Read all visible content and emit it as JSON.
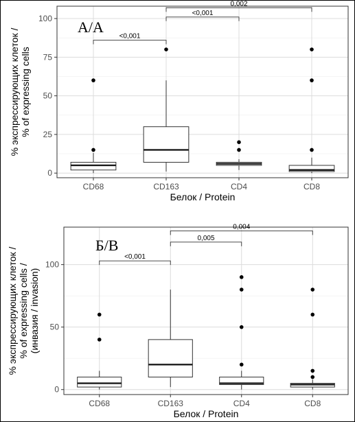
{
  "chart_data": [
    {
      "type": "box",
      "panel_label": "А/А",
      "categories": [
        "CD68",
        "CD163",
        "CD4",
        "CD8"
      ],
      "xlabel": "Белок / Protein",
      "ylabel_lines": [
        "% экспрессирующих клеток /",
        "% of expressing cells"
      ],
      "ylim": [
        -3,
        108
      ],
      "yticks": [
        0,
        25,
        50,
        75,
        100
      ],
      "grid": true,
      "boxes": [
        {
          "q1": 2,
          "median": 5,
          "q3": 7,
          "whisker_low": 0,
          "whisker_high": 13,
          "outliers": [
            15,
            60
          ]
        },
        {
          "q1": 7,
          "median": 15,
          "q3": 30,
          "whisker_low": 1,
          "whisker_high": 60,
          "outliers": [
            80
          ]
        },
        {
          "q1": 5,
          "median": 6,
          "q3": 7,
          "whisker_low": 2,
          "whisker_high": 9,
          "outliers": [
            15,
            20
          ]
        },
        {
          "q1": 1,
          "median": 2,
          "q3": 5,
          "whisker_low": 0,
          "whisker_high": 10,
          "outliers": [
            15,
            60,
            80
          ]
        }
      ],
      "comparisons": [
        {
          "from": 0,
          "to": 1,
          "label": "<0,001",
          "y": 86
        },
        {
          "from": 1,
          "to": 2,
          "label": "<0,001",
          "y": 101
        },
        {
          "from": 1,
          "to": 3,
          "label": "0,002",
          "y": 107
        }
      ]
    },
    {
      "type": "box",
      "panel_label": "Б/В",
      "categories": [
        "CD68",
        "CD163",
        "CD4",
        "CD8"
      ],
      "xlabel": "Белок / Protein",
      "ylabel_lines": [
        "% экспрессирующих клеток /",
        "% of expressing cells /",
        "(инвазия / invasion)"
      ],
      "ylim": [
        -4,
        130
      ],
      "yticks": [
        0,
        50,
        100
      ],
      "grid": true,
      "boxes": [
        {
          "q1": 2,
          "median": 5,
          "q3": 10,
          "whisker_low": 0,
          "whisker_high": 15,
          "outliers": [
            40,
            60
          ]
        },
        {
          "q1": 10,
          "median": 20,
          "q3": 40,
          "whisker_low": 2,
          "whisker_high": 80,
          "outliers": []
        },
        {
          "q1": 4,
          "median": 5,
          "q3": 10,
          "whisker_low": 0,
          "whisker_high": 15,
          "outliers": [
            20,
            50,
            80,
            90
          ]
        },
        {
          "q1": 2,
          "median": 4,
          "q3": 5,
          "whisker_low": 0,
          "whisker_high": 8,
          "outliers": [
            10,
            15,
            60,
            80
          ]
        }
      ],
      "comparisons": [
        {
          "from": 0,
          "to": 1,
          "label": "<0,001",
          "y": 103
        },
        {
          "from": 1,
          "to": 2,
          "label": "0,005",
          "y": 118
        },
        {
          "from": 1,
          "to": 3,
          "label": "0,004",
          "y": 127
        }
      ]
    }
  ]
}
